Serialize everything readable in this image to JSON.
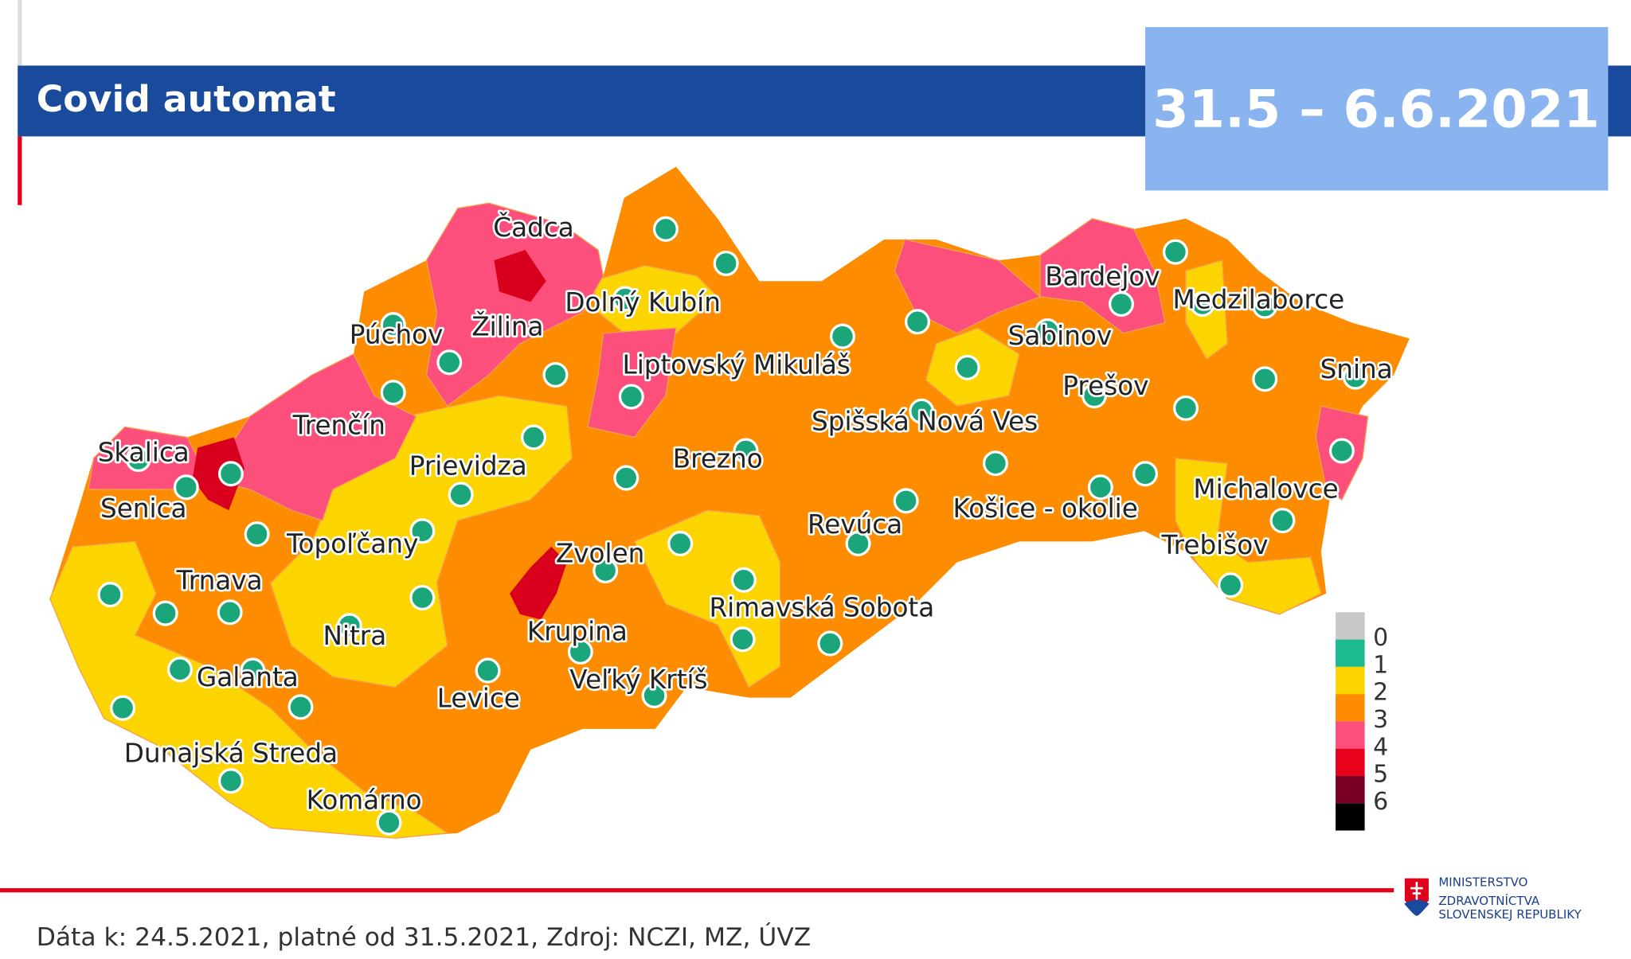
{
  "header": {
    "title": "Covid automat",
    "date_range": "31.5 – 6.6.2021"
  },
  "map": {
    "labels": [
      "Čadca",
      "Dolný Kubín",
      "Púchov",
      "Žilina",
      "Liptovský Mikuláš",
      "Bardejov",
      "Medzilaborce",
      "Sabinov",
      "Prešov",
      "Snina",
      "Trenčín",
      "Skalica",
      "Prievidza",
      "Spišská Nová Ves",
      "Brezno",
      "Senica",
      "Košice - okolie",
      "Michalovce",
      "Revúca",
      "Topoľčany",
      "Trebišov",
      "Zvolen",
      "Trnava",
      "Rimavská Sobota",
      "Nitra",
      "Krupina",
      "Galanta",
      "Veľký Krtíš",
      "Levice",
      "Dunajská Streda",
      "Komárno"
    ]
  },
  "legend": {
    "items": [
      {
        "label": "0",
        "color": "#c8c8c8"
      },
      {
        "label": "1",
        "color": "#1dba8f"
      },
      {
        "label": "2",
        "color": "#fcd400"
      },
      {
        "label": "3",
        "color": "#fd8c00"
      },
      {
        "label": "4",
        "color": "#fc4f7c"
      },
      {
        "label": "5",
        "color": "#e8001c"
      },
      {
        "label": "6",
        "color": "#7a0026"
      },
      {
        "label": "",
        "color": "#000000"
      }
    ]
  },
  "footer": {
    "source": "Dáta k: 24.5.2021, platné od 31.5.2021, Zdroj: NCZI, MZ, ÚVZ"
  },
  "logo": {
    "lines": [
      "MINISTERSTVO",
      "ZDRAVOTNÍCTVA",
      "SLOVENSKEJ REPUBLIKY"
    ]
  }
}
